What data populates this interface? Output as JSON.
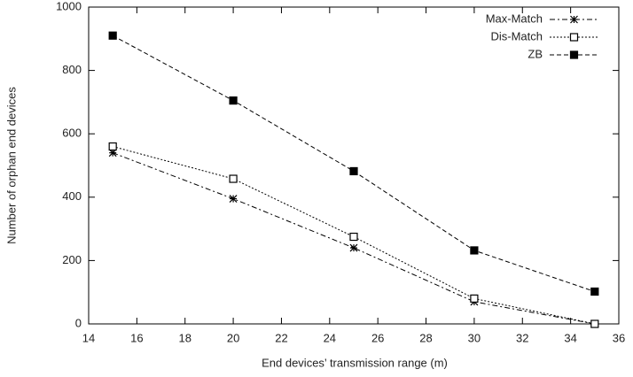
{
  "chart_data": {
    "type": "line",
    "x_label": "End devices’ transmission range (m)",
    "y_label": "Number of orphan end devices",
    "x": [
      15,
      20,
      25,
      30,
      35
    ],
    "series": [
      {
        "name": "Max-Match",
        "color": "#000000",
        "dash": "6 3 2 3",
        "marker": "star",
        "values": [
          540,
          395,
          240,
          70,
          0
        ]
      },
      {
        "name": "Dis-Match",
        "color": "#000000",
        "dash": "2 2",
        "marker": "open-square",
        "values": [
          560,
          458,
          275,
          80,
          0
        ]
      },
      {
        "name": "ZB",
        "color": "#000000",
        "dash": "5 3",
        "marker": "filled-square",
        "values": [
          910,
          705,
          482,
          232,
          102
        ]
      }
    ],
    "xlim": [
      14,
      36
    ],
    "xticks": [
      14,
      16,
      18,
      20,
      22,
      24,
      26,
      28,
      30,
      32,
      34,
      36
    ],
    "ylim": [
      0,
      1000
    ],
    "yticks": [
      0,
      200,
      400,
      600,
      800,
      1000
    ],
    "legend": "top-right"
  }
}
